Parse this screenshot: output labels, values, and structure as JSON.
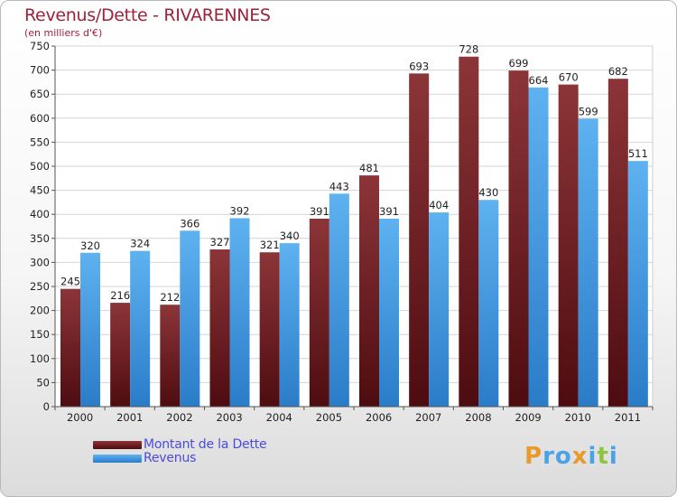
{
  "chart_data": {
    "type": "bar",
    "title": "Revenus/Dette - RIVARENNES",
    "subtitle": "(en milliers d'€)",
    "categories": [
      "2000",
      "2001",
      "2002",
      "2003",
      "2004",
      "2005",
      "2006",
      "2007",
      "2008",
      "2009",
      "2010",
      "2011"
    ],
    "series": [
      {
        "name": "Montant de la Dette",
        "color": "#7a2a2e",
        "values": [
          245,
          216,
          212,
          327,
          321,
          391,
          481,
          693,
          728,
          699,
          670,
          682
        ]
      },
      {
        "name": "Revenus",
        "color": "#4aa2e8",
        "values": [
          320,
          324,
          366,
          392,
          340,
          443,
          391,
          404,
          430,
          664,
          599,
          511
        ]
      }
    ],
    "ylim": [
      0,
      750
    ],
    "yticks": [
      0,
      50,
      100,
      150,
      200,
      250,
      300,
      350,
      400,
      450,
      500,
      550,
      600,
      650,
      700,
      750
    ],
    "grid": true,
    "legend": "bottom-left"
  },
  "logo": {
    "text": "Proxiti",
    "letters": [
      {
        "ch": "P",
        "color": "#e99a2c"
      },
      {
        "ch": "r",
        "color": "#4aa2e8"
      },
      {
        "ch": "o",
        "color": "#4aa2e8"
      },
      {
        "ch": "x",
        "color": "#e99a2c"
      },
      {
        "ch": "i",
        "color": "#4aa2e8"
      },
      {
        "ch": "t",
        "color": "#8cc63f"
      },
      {
        "ch": "i",
        "color": "#4aa2e8"
      }
    ]
  }
}
